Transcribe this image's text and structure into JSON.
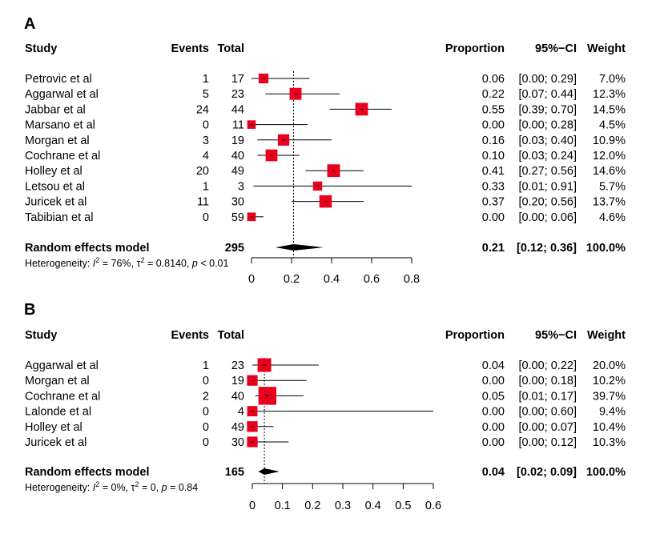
{
  "headers": {
    "study": "Study",
    "events": "Events",
    "total": "Total",
    "proportion": "Proportion",
    "ci": "95%−CI",
    "weight": "Weight"
  },
  "colors": {
    "square": "#e8001c",
    "diamond": "#000000",
    "line": "#000000",
    "ref_line": "#000000"
  },
  "chart_data": [
    {
      "type": "forest",
      "panel": "A",
      "xlim": [
        0,
        0.8
      ],
      "ticks": [
        0,
        0.2,
        0.4,
        0.6,
        0.8
      ],
      "tick_labels": [
        "0",
        "0.2",
        "0.4",
        "0.6",
        "0.8"
      ],
      "studies": [
        {
          "study": "Petrovic et al",
          "events": 1,
          "total": 17,
          "prop": 0.06,
          "lo": 0.0,
          "hi": 0.29,
          "prop_text": "0.06",
          "ci_text": "[0.00; 0.29]",
          "weight_text": "7.0%",
          "weight": 7.0
        },
        {
          "study": "Aggarwal et al",
          "events": 5,
          "total": 23,
          "prop": 0.22,
          "lo": 0.07,
          "hi": 0.44,
          "prop_text": "0.22",
          "ci_text": "[0.07; 0.44]",
          "weight_text": "12.3%",
          "weight": 12.3
        },
        {
          "study": "Jabbar et al",
          "events": 24,
          "total": 44,
          "prop": 0.55,
          "lo": 0.39,
          "hi": 0.7,
          "prop_text": "0.55",
          "ci_text": "[0.39; 0.70]",
          "weight_text": "14.5%",
          "weight": 14.5
        },
        {
          "study": "Marsano et al",
          "events": 0,
          "total": 11,
          "prop": 0.0,
          "lo": 0.0,
          "hi": 0.28,
          "prop_text": "0.00",
          "ci_text": "[0.00; 0.28]",
          "weight_text": "4.5%",
          "weight": 4.5
        },
        {
          "study": "Morgan et al",
          "events": 3,
          "total": 19,
          "prop": 0.16,
          "lo": 0.03,
          "hi": 0.4,
          "prop_text": "0.16",
          "ci_text": "[0.03; 0.40]",
          "weight_text": "10.9%",
          "weight": 10.9
        },
        {
          "study": "Cochrane et al",
          "events": 4,
          "total": 40,
          "prop": 0.1,
          "lo": 0.03,
          "hi": 0.24,
          "prop_text": "0.10",
          "ci_text": "[0.03; 0.24]",
          "weight_text": "12.0%",
          "weight": 12.0
        },
        {
          "study": "Holley et al",
          "events": 20,
          "total": 49,
          "prop": 0.41,
          "lo": 0.27,
          "hi": 0.56,
          "prop_text": "0.41",
          "ci_text": "[0.27; 0.56]",
          "weight_text": "14.6%",
          "weight": 14.6
        },
        {
          "study": "Letsou et al",
          "events": 1,
          "total": 3,
          "prop": 0.33,
          "lo": 0.01,
          "hi": 0.91,
          "prop_text": "0.33",
          "ci_text": "[0.01; 0.91]",
          "weight_text": "5.7%",
          "weight": 5.7
        },
        {
          "study": "Juricek et al",
          "events": 11,
          "total": 30,
          "prop": 0.37,
          "lo": 0.2,
          "hi": 0.56,
          "prop_text": "0.37",
          "ci_text": "[0.20; 0.56]",
          "weight_text": "13.7%",
          "weight": 13.7
        },
        {
          "study": "Tabibian et al",
          "events": 0,
          "total": 59,
          "prop": 0.0,
          "lo": 0.0,
          "hi": 0.06,
          "prop_text": "0.00",
          "ci_text": "[0.00; 0.06]",
          "weight_text": "4.6%",
          "weight": 4.6
        }
      ],
      "pooled": {
        "label": "Random effects model",
        "total": "295",
        "prop": 0.21,
        "lo": 0.12,
        "hi": 0.36,
        "prop_text": "0.21",
        "ci_text": "[0.12; 0.36]",
        "weight_text": "100.0%"
      },
      "heterogeneity": {
        "prefix": "Heterogeneity: ",
        "i2": "76%",
        "tau2": "0.8140",
        "p": "< 0.01",
        "p_sep": " "
      }
    },
    {
      "type": "forest",
      "panel": "B",
      "xlim": [
        0,
        0.6
      ],
      "ticks": [
        0,
        0.1,
        0.2,
        0.3,
        0.4,
        0.5,
        0.6
      ],
      "tick_labels": [
        "0",
        "0.1",
        "0.2",
        "0.3",
        "0.4",
        "0.5",
        "0.6"
      ],
      "studies": [
        {
          "study": "Aggarwal et al",
          "events": 1,
          "total": 23,
          "prop": 0.04,
          "lo": 0.0,
          "hi": 0.22,
          "prop_text": "0.04",
          "ci_text": "[0.00; 0.22]",
          "weight_text": "20.0%",
          "weight": 20.0
        },
        {
          "study": "Morgan et al",
          "events": 0,
          "total": 19,
          "prop": 0.0,
          "lo": 0.0,
          "hi": 0.18,
          "prop_text": "0.00",
          "ci_text": "[0.00; 0.18]",
          "weight_text": "10.2%",
          "weight": 10.2
        },
        {
          "study": "Cochrane et al",
          "events": 2,
          "total": 40,
          "prop": 0.05,
          "lo": 0.01,
          "hi": 0.17,
          "prop_text": "0.05",
          "ci_text": "[0.01; 0.17]",
          "weight_text": "39.7%",
          "weight": 39.7
        },
        {
          "study": "Lalonde et al",
          "events": 0,
          "total": 4,
          "prop": 0.0,
          "lo": 0.0,
          "hi": 0.6,
          "prop_text": "0.00",
          "ci_text": "[0.00; 0.60]",
          "weight_text": "9.4%",
          "weight": 9.4
        },
        {
          "study": "Holley et al",
          "events": 0,
          "total": 49,
          "prop": 0.0,
          "lo": 0.0,
          "hi": 0.07,
          "prop_text": "0.00",
          "ci_text": "[0.00; 0.07]",
          "weight_text": "10.4%",
          "weight": 10.4
        },
        {
          "study": "Juricek et al",
          "events": 0,
          "total": 30,
          "prop": 0.0,
          "lo": 0.0,
          "hi": 0.12,
          "prop_text": "0.00",
          "ci_text": "[0.00; 0.12]",
          "weight_text": "10.3%",
          "weight": 10.3
        }
      ],
      "pooled": {
        "label": "Random effects model",
        "total": "165",
        "prop": 0.04,
        "lo": 0.02,
        "hi": 0.09,
        "prop_text": "0.04",
        "ci_text": "[0.02; 0.09]",
        "weight_text": "100.0%"
      },
      "heterogeneity": {
        "prefix": "Heterogeneity: ",
        "i2": "0%",
        "tau2": "0",
        "p": "0.84",
        "p_sep": " = "
      }
    }
  ]
}
